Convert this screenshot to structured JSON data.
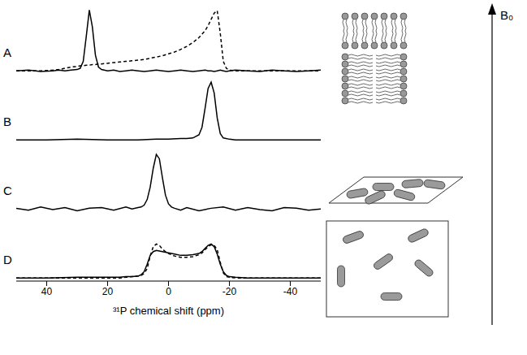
{
  "chart_data": [
    {
      "type": "line",
      "title": "A",
      "tick_labels": false,
      "xlim": [
        50,
        -50
      ],
      "ylim": [
        -5,
        100
      ],
      "x": [
        50,
        46,
        42,
        38,
        36,
        34,
        32,
        30,
        29,
        28,
        27,
        26,
        25,
        24,
        23,
        22,
        20,
        18,
        16,
        14,
        12,
        10,
        8,
        6,
        4,
        2,
        0,
        -2,
        -4,
        -6,
        -8,
        -10,
        -12,
        -13,
        -14,
        -15,
        -16,
        -17,
        -18,
        -19,
        -20,
        -22,
        -26,
        -30,
        -34,
        -38,
        -42,
        -46,
        -50
      ],
      "series": [
        {
          "color": "#000000",
          "line_style": "solid",
          "values": [
            0,
            1,
            -1,
            0,
            1,
            0,
            1,
            2,
            4,
            15,
            55,
            97,
            70,
            25,
            6,
            2,
            0,
            1,
            -1,
            0,
            1,
            0,
            -1,
            0,
            1,
            0,
            -1,
            0,
            1,
            0,
            -1,
            0,
            1,
            0,
            0,
            -1,
            0,
            1,
            0,
            -1,
            0,
            1,
            0,
            -1,
            1,
            0,
            -1,
            0,
            1
          ]
        },
        {
          "color": "#000000",
          "line_style": "dashed",
          "values": [
            0,
            0,
            0,
            1,
            2,
            4,
            6,
            7,
            8,
            8,
            9,
            9,
            10,
            10,
            11,
            11,
            12,
            13,
            14,
            15,
            16,
            17,
            18,
            20,
            22,
            24,
            27,
            30,
            34,
            39,
            45,
            53,
            64,
            72,
            82,
            92,
            96,
            60,
            15,
            4,
            1,
            0,
            0,
            0,
            0,
            0,
            0,
            0,
            0
          ]
        }
      ]
    },
    {
      "type": "line",
      "title": "B",
      "tick_labels": false,
      "xlim": [
        50,
        -50
      ],
      "ylim": [
        -5,
        100
      ],
      "x": [
        50,
        40,
        30,
        20,
        10,
        4,
        0,
        -4,
        -6,
        -8,
        -10,
        -11,
        -12,
        -13,
        -14,
        -15,
        -16,
        -17,
        -18,
        -20,
        -22,
        -26,
        -30,
        -40,
        -50
      ],
      "series": [
        {
          "color": "#000000",
          "line_style": "solid",
          "values": [
            0,
            0,
            1,
            0,
            0,
            1,
            1,
            2,
            2,
            3,
            8,
            20,
            50,
            82,
            92,
            75,
            35,
            10,
            3,
            1,
            0,
            0,
            0,
            0,
            0
          ]
        }
      ]
    },
    {
      "type": "line",
      "title": "C",
      "tick_labels": false,
      "xlim": [
        50,
        -50
      ],
      "ylim": [
        -5,
        100
      ],
      "x": [
        50,
        46,
        42,
        38,
        34,
        30,
        26,
        22,
        18,
        14,
        12,
        10,
        9,
        8,
        7,
        6,
        5,
        4,
        3,
        2,
        1,
        0,
        -1,
        -2,
        -4,
        -6,
        -10,
        -14,
        -18,
        -22,
        -26,
        -30,
        -34,
        -38,
        -42,
        -46,
        -50
      ],
      "series": [
        {
          "color": "#000000",
          "line_style": "solid",
          "values": [
            1,
            -2,
            3,
            -1,
            2,
            -3,
            1,
            2,
            -2,
            3,
            0,
            2,
            3,
            6,
            15,
            35,
            65,
            87,
            80,
            50,
            22,
            8,
            3,
            1,
            -2,
            2,
            -3,
            1,
            3,
            -2,
            2,
            -1,
            -3,
            2,
            1,
            -2,
            0
          ]
        }
      ]
    },
    {
      "type": "line",
      "title": "D",
      "tick_labels": "x",
      "xlim": [
        50,
        -50
      ],
      "ylim": [
        -5,
        100
      ],
      "xticks": [
        40,
        20,
        0,
        -20,
        -40
      ],
      "xlabel": "³¹P chemical shift (ppm)",
      "annotations": [
        "B₀"
      ],
      "x": [
        50,
        40,
        30,
        20,
        16,
        14,
        12,
        10,
        9,
        8,
        7,
        6,
        5,
        4,
        3,
        2,
        1,
        0,
        -2,
        -4,
        -6,
        -8,
        -10,
        -11,
        -12,
        -13,
        -14,
        -15,
        -16,
        -17,
        -18,
        -19,
        -20,
        -22,
        -26,
        -30,
        -40,
        -50
      ],
      "series": [
        {
          "color": "#000000",
          "line_style": "solid",
          "values": [
            0,
            0,
            1,
            1,
            1,
            2,
            2,
            3,
            5,
            10,
            22,
            36,
            42,
            44,
            43,
            42,
            41,
            40,
            38,
            36,
            36,
            37,
            39,
            42,
            47,
            52,
            54,
            50,
            38,
            22,
            10,
            4,
            2,
            1,
            0,
            0,
            0,
            0
          ]
        },
        {
          "color": "#000000",
          "line_style": "dashed",
          "values": [
            0,
            0,
            0,
            0,
            0,
            1,
            2,
            3,
            4,
            7,
            15,
            35,
            50,
            54,
            52,
            46,
            42,
            39,
            35,
            33,
            33,
            34,
            37,
            40,
            45,
            50,
            53,
            52,
            45,
            25,
            8,
            2,
            1,
            0,
            0,
            0,
            0,
            0
          ]
        }
      ]
    }
  ]
}
